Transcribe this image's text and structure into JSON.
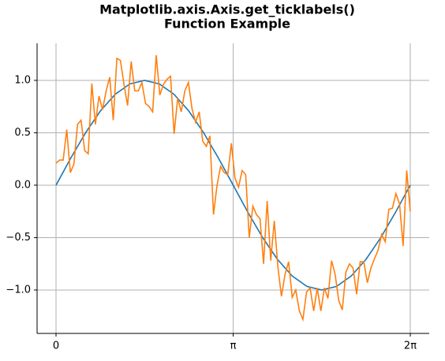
{
  "chart_data": {
    "type": "line",
    "title": [
      "Matplotlib.axis.Axis.get_ticklabels()",
      "Function Example"
    ],
    "xlim": [
      -0.336,
      6.619
    ],
    "xticks": [
      0,
      {
        "value": 3.142,
        "label": "π"
      },
      {
        "value": 6.283,
        "label": "2π"
      }
    ],
    "ylim": [
      -1.414,
      1.353
    ],
    "yticks": [
      {
        "value": -1,
        "label": "−1.0"
      },
      {
        "value": -0.5,
        "label": "−0.5"
      },
      {
        "value": 0,
        "label": "0.0"
      },
      {
        "value": 0.5,
        "label": "0.5"
      },
      {
        "value": 1,
        "label": "1.0"
      }
    ],
    "grid": true,
    "series": [
      {
        "color": "#1f77b4",
        "x": [
          0,
          0.262,
          0.524,
          0.785,
          1.047,
          1.309,
          1.571,
          1.833,
          2.094,
          2.356,
          2.618,
          2.88,
          3.142,
          3.403,
          3.665,
          3.927,
          4.189,
          4.451,
          4.712,
          4.974,
          5.236,
          5.498,
          5.76,
          6.021,
          6.283
        ],
        "values": [
          0,
          0.259,
          0.5,
          0.707,
          0.866,
          0.966,
          1,
          0.966,
          0.866,
          0.707,
          0.5,
          0.259,
          0,
          -0.259,
          -0.5,
          -0.707,
          -0.866,
          -0.966,
          -1,
          -0.966,
          -0.866,
          -0.707,
          -0.5,
          -0.259,
          0
        ]
      },
      {
        "color": "#ff7f0e",
        "x": [
          0,
          0.063,
          0.127,
          0.19,
          0.254,
          0.317,
          0.381,
          0.444,
          0.508,
          0.571,
          0.635,
          0.698,
          0.762,
          0.825,
          0.889,
          0.952,
          1.015,
          1.079,
          1.142,
          1.206,
          1.269,
          1.333,
          1.396,
          1.46,
          1.523,
          1.587,
          1.65,
          1.714,
          1.777,
          1.841,
          1.904,
          1.967,
          2.031,
          2.094,
          2.158,
          2.221,
          2.285,
          2.348,
          2.412,
          2.475,
          2.539,
          2.602,
          2.666,
          2.729,
          2.793,
          2.856,
          2.919,
          2.983,
          3.046,
          3.11,
          3.173,
          3.237,
          3.3,
          3.364,
          3.427,
          3.491,
          3.554,
          3.618,
          3.681,
          3.745,
          3.808,
          3.871,
          3.935,
          3.998,
          4.062,
          4.125,
          4.189,
          4.252,
          4.316,
          4.379,
          4.443,
          4.506,
          4.57,
          4.633,
          4.697,
          4.76,
          4.823,
          4.887,
          4.95,
          5.014,
          5.077,
          5.141,
          5.204,
          5.268,
          5.331,
          5.395,
          5.458,
          5.522,
          5.585,
          5.649,
          5.712,
          5.775,
          5.839,
          5.902,
          5.966,
          6.029,
          6.093,
          6.156,
          6.22,
          6.283
        ],
        "values": [
          0.21,
          0.24,
          0.24,
          0.53,
          0.12,
          0.2,
          0.58,
          0.62,
          0.33,
          0.3,
          0.97,
          0.58,
          0.85,
          0.72,
          0.9,
          1.03,
          0.62,
          1.21,
          1.19,
          0.96,
          0.76,
          1.18,
          0.9,
          0.9,
          0.98,
          0.78,
          0.75,
          0.7,
          1.24,
          0.86,
          0.96,
          1.01,
          1.04,
          0.49,
          0.83,
          0.7,
          0.9,
          0.98,
          0.73,
          0.6,
          0.7,
          0.42,
          0.37,
          0.47,
          -0.28,
          0.0,
          0.18,
          0.12,
          0.1,
          0.4,
          0.07,
          -0.02,
          0.14,
          0.1,
          -0.5,
          -0.2,
          -0.28,
          -0.32,
          -0.75,
          -0.15,
          -0.72,
          -0.34,
          -0.78,
          -1.06,
          -0.85,
          -0.73,
          -1.07,
          -1.0,
          -1.2,
          -1.28,
          -1.02,
          -0.98,
          -1.2,
          -0.98,
          -1.2,
          -0.98,
          -1.08,
          -0.72,
          -0.85,
          -1.1,
          -1.19,
          -0.83,
          -0.75,
          -0.79,
          -1.04,
          -0.73,
          -0.73,
          -0.93,
          -0.79,
          -0.7,
          -0.62,
          -0.47,
          -0.54,
          -0.23,
          -0.22,
          -0.08,
          -0.18,
          -0.58,
          0.14,
          -0.25
        ]
      }
    ]
  }
}
